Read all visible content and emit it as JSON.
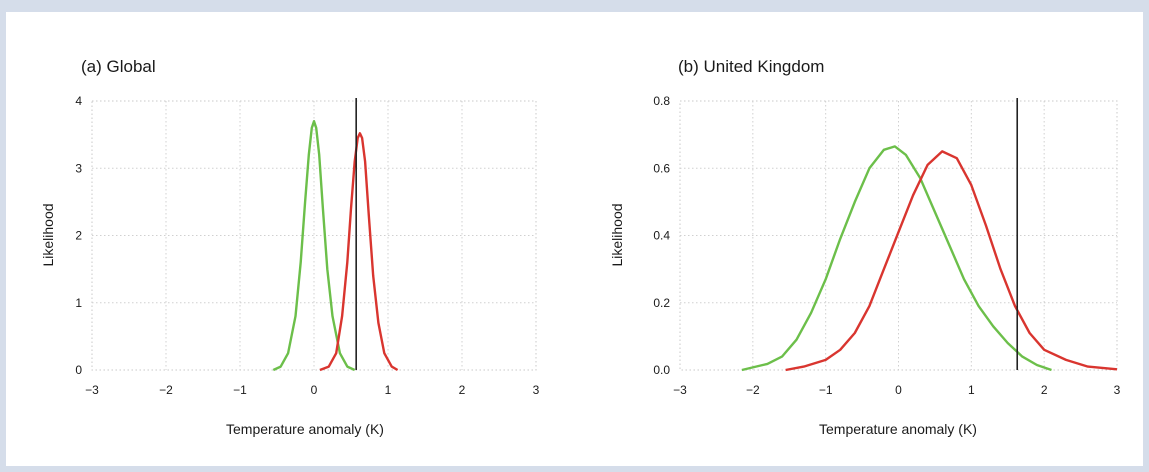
{
  "chart_data": [
    {
      "type": "line",
      "title": "(a) Global",
      "xlabel": "Temperature anomaly (K)",
      "ylabel": "Likelihood",
      "xlim": [
        -3,
        3
      ],
      "ylim": [
        0,
        4
      ],
      "xticks": [
        "−3",
        "−2",
        "−1",
        "0",
        "1",
        "2",
        "3"
      ],
      "yticks": [
        "0",
        "1",
        "2",
        "3",
        "4"
      ],
      "vline": 0.57,
      "grid": "dotted",
      "series": [
        {
          "color": "#6cbf4a",
          "x": [
            -0.55,
            -0.45,
            -0.35,
            -0.25,
            -0.18,
            -0.12,
            -0.07,
            -0.03,
            0.0,
            0.03,
            0.07,
            0.12,
            0.18,
            0.25,
            0.35,
            0.45,
            0.55
          ],
          "y": [
            0.0,
            0.05,
            0.25,
            0.8,
            1.6,
            2.5,
            3.2,
            3.6,
            3.7,
            3.6,
            3.2,
            2.4,
            1.5,
            0.8,
            0.25,
            0.05,
            0.0
          ]
        },
        {
          "color": "#d9352f",
          "x": [
            0.08,
            0.2,
            0.3,
            0.38,
            0.45,
            0.5,
            0.55,
            0.59,
            0.62,
            0.65,
            0.69,
            0.74,
            0.8,
            0.87,
            0.95,
            1.05,
            1.13
          ],
          "y": [
            0.0,
            0.05,
            0.25,
            0.8,
            1.6,
            2.4,
            3.1,
            3.45,
            3.52,
            3.45,
            3.1,
            2.3,
            1.4,
            0.7,
            0.25,
            0.05,
            0.0
          ]
        }
      ]
    },
    {
      "type": "line",
      "title": "(b) United Kingdom",
      "xlabel": "Temperature anomaly (K)",
      "ylabel": "Likelihood",
      "xlim": [
        -3,
        3
      ],
      "ylim": [
        0,
        0.8
      ],
      "xticks": [
        "−3",
        "−2",
        "−1",
        "0",
        "1",
        "2",
        "3"
      ],
      "yticks": [
        "0.0",
        "0.2",
        "0.4",
        "0.6",
        "0.8"
      ],
      "vline": 1.63,
      "grid": "dotted",
      "series": [
        {
          "color": "#6cbf4a",
          "x": [
            -2.15,
            -1.8,
            -1.6,
            -1.4,
            -1.2,
            -1.0,
            -0.8,
            -0.6,
            -0.4,
            -0.2,
            -0.05,
            0.1,
            0.3,
            0.5,
            0.7,
            0.9,
            1.1,
            1.3,
            1.5,
            1.7,
            1.9,
            2.1
          ],
          "y": [
            0.0,
            0.018,
            0.04,
            0.09,
            0.17,
            0.27,
            0.39,
            0.5,
            0.6,
            0.655,
            0.665,
            0.64,
            0.57,
            0.47,
            0.37,
            0.27,
            0.19,
            0.13,
            0.08,
            0.04,
            0.015,
            0.0
          ]
        },
        {
          "color": "#d9352f",
          "x": [
            -1.55,
            -1.3,
            -1.0,
            -0.8,
            -0.6,
            -0.4,
            -0.2,
            0.0,
            0.2,
            0.4,
            0.6,
            0.8,
            1.0,
            1.2,
            1.4,
            1.6,
            1.8,
            2.0,
            2.3,
            2.6,
            3.0
          ],
          "y": [
            0.0,
            0.01,
            0.03,
            0.06,
            0.11,
            0.19,
            0.3,
            0.41,
            0.52,
            0.61,
            0.65,
            0.63,
            0.55,
            0.43,
            0.3,
            0.19,
            0.11,
            0.06,
            0.03,
            0.01,
            0.002
          ]
        }
      ]
    }
  ]
}
